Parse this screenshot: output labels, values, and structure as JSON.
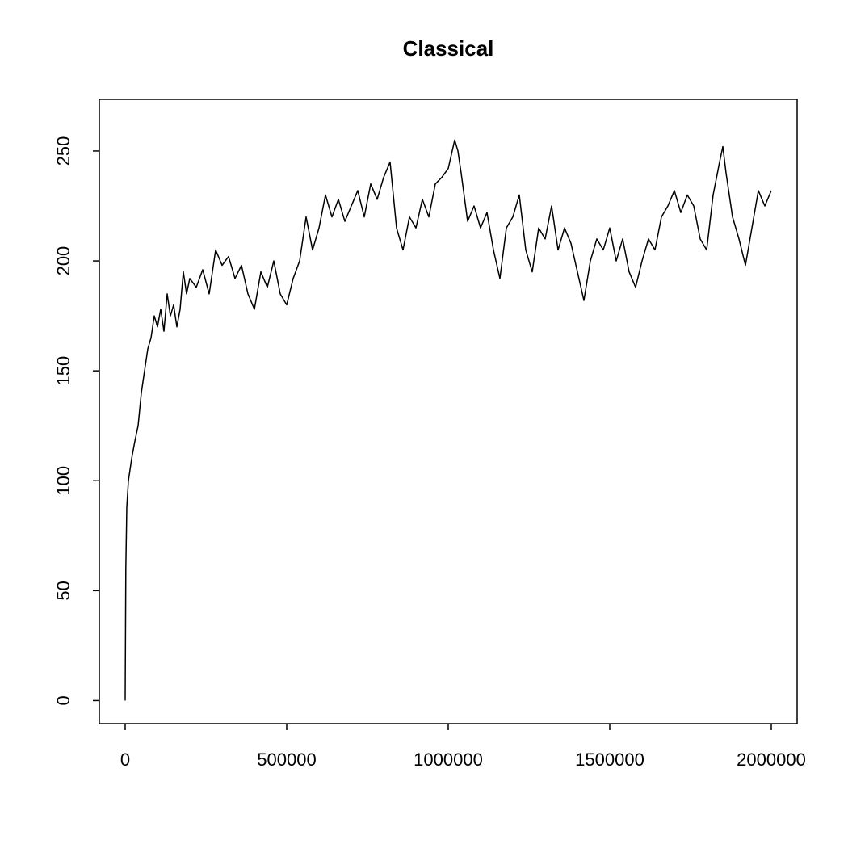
{
  "chart_data": {
    "type": "line",
    "title": "Classical",
    "x": [
      0,
      2000,
      5000,
      10000,
      15000,
      20000,
      30000,
      40000,
      50000,
      60000,
      70000,
      80000,
      90000,
      100000,
      110000,
      120000,
      130000,
      140000,
      150000,
      160000,
      170000,
      180000,
      190000,
      200000,
      220000,
      240000,
      260000,
      280000,
      300000,
      320000,
      340000,
      360000,
      380000,
      400000,
      420000,
      440000,
      460000,
      480000,
      500000,
      520000,
      540000,
      560000,
      580000,
      600000,
      620000,
      640000,
      660000,
      680000,
      700000,
      720000,
      740000,
      760000,
      780000,
      800000,
      820000,
      840000,
      860000,
      880000,
      900000,
      920000,
      940000,
      960000,
      980000,
      1000000,
      1020000,
      1030000,
      1040000,
      1060000,
      1080000,
      1100000,
      1120000,
      1140000,
      1160000,
      1180000,
      1200000,
      1220000,
      1240000,
      1260000,
      1280000,
      1300000,
      1320000,
      1340000,
      1360000,
      1380000,
      1400000,
      1420000,
      1440000,
      1460000,
      1480000,
      1500000,
      1520000,
      1540000,
      1560000,
      1580000,
      1600000,
      1620000,
      1640000,
      1660000,
      1680000,
      1700000,
      1720000,
      1740000,
      1760000,
      1780000,
      1800000,
      1820000,
      1840000,
      1850000,
      1860000,
      1880000,
      1900000,
      1920000,
      1940000,
      1960000,
      1980000,
      2000000
    ],
    "values": [
      0,
      60,
      88,
      100,
      105,
      110,
      118,
      125,
      140,
      150,
      160,
      165,
      175,
      170,
      178,
      168,
      185,
      175,
      180,
      170,
      178,
      195,
      185,
      192,
      188,
      196,
      185,
      205,
      198,
      202,
      192,
      198,
      185,
      178,
      195,
      188,
      200,
      185,
      180,
      192,
      200,
      220,
      205,
      215,
      230,
      220,
      228,
      218,
      225,
      232,
      220,
      235,
      228,
      238,
      245,
      215,
      205,
      220,
      215,
      228,
      220,
      235,
      238,
      242,
      255,
      250,
      240,
      218,
      225,
      215,
      222,
      205,
      192,
      215,
      220,
      230,
      205,
      195,
      215,
      210,
      225,
      205,
      215,
      208,
      195,
      182,
      200,
      210,
      205,
      215,
      200,
      210,
      195,
      188,
      200,
      210,
      205,
      220,
      225,
      232,
      222,
      230,
      225,
      210,
      205,
      230,
      245,
      252,
      240,
      220,
      210,
      198,
      215,
      232,
      225,
      232
    ],
    "color": "#000000",
    "xlim": [
      -80000,
      2080000
    ],
    "xticks": [
      0,
      500000,
      1000000,
      1500000,
      2000000
    ],
    "ylim": [
      -10.5,
      273.5
    ],
    "yticks": [
      0,
      50,
      100,
      150,
      200,
      250
    ]
  }
}
